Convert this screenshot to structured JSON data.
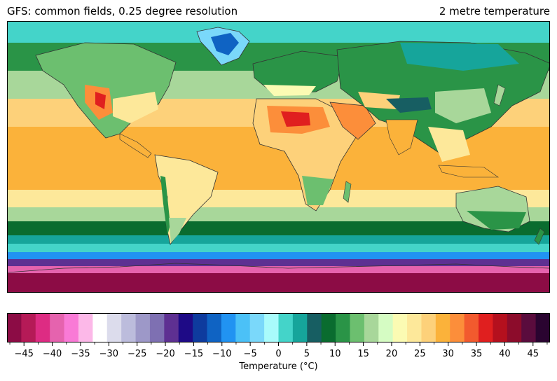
{
  "header": {
    "title_left": "GFS: common fields, 0.25 degree resolution",
    "title_right": "2 metre temperature"
  },
  "map": {
    "projection": "equirectangular",
    "coastlines": true,
    "field": "2 metre temperature",
    "background_color": "#8a0040"
  },
  "colorbar": {
    "label": "Temperature (°C)",
    "min": -48,
    "max": 48,
    "step": 2.5,
    "ticks": [
      "−45",
      "−40",
      "−35",
      "−30",
      "−25",
      "−20",
      "−15",
      "−10",
      "−5",
      "0",
      "5",
      "10",
      "15",
      "20",
      "25",
      "30",
      "35",
      "40",
      "45"
    ],
    "tick_values": [
      -45,
      -40,
      -35,
      -30,
      -25,
      -20,
      -15,
      -10,
      -5,
      0,
      5,
      10,
      15,
      20,
      25,
      30,
      35,
      40,
      45
    ],
    "colors": [
      "#8c0c45",
      "#b51a57",
      "#dd2c83",
      "#e563ae",
      "#f97ad6",
      "#fcb8e8",
      "#ffffff",
      "#dcdcec",
      "#bcbcdc",
      "#9d98c8",
      "#7e70b2",
      "#5e3092",
      "#1e0a86",
      "#0e3b9e",
      "#0f63c3",
      "#2193f2",
      "#4bc1f7",
      "#7ad8fa",
      "#a9fbfb",
      "#44d4c9",
      "#16a59b",
      "#175e62",
      "#0a6c2f",
      "#2a9447",
      "#6cbf6f",
      "#a8d79a",
      "#d5fcc3",
      "#fbfbb3",
      "#fde89a",
      "#fdd17a",
      "#fbb23a",
      "#fc8e3a",
      "#f25a2e",
      "#e01f1f",
      "#b5101e",
      "#8c0c2b",
      "#5a0c3d",
      "#2a0430"
    ]
  }
}
